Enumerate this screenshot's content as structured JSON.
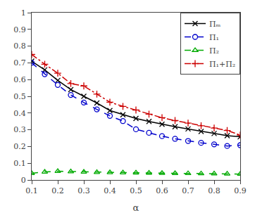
{
  "chart_data": {
    "type": "line",
    "xlabel": "α",
    "x": [
      0.1,
      0.15,
      0.2,
      0.25,
      0.3,
      0.35,
      0.4,
      0.45,
      0.5,
      0.55,
      0.6,
      0.65,
      0.7,
      0.75,
      0.8,
      0.85,
      0.9
    ],
    "series": [
      {
        "name": "Πₘ",
        "color": "#000000",
        "marker": "x",
        "line_style": "solid",
        "values": [
          0.71,
          0.658,
          0.595,
          0.54,
          0.5,
          0.46,
          0.415,
          0.39,
          0.368,
          0.35,
          0.333,
          0.318,
          0.305,
          0.29,
          0.278,
          0.265,
          0.258
        ]
      },
      {
        "name": "Π₁",
        "color": "#0000cc",
        "marker": "circle-open",
        "line_style": "dash",
        "values": [
          0.7,
          0.632,
          0.568,
          0.508,
          0.463,
          0.422,
          0.383,
          0.352,
          0.303,
          0.282,
          0.262,
          0.246,
          0.233,
          0.222,
          0.213,
          0.203,
          0.208
        ]
      },
      {
        "name": "Π₂",
        "color": "#00aa00",
        "marker": "triangle-up-open",
        "line_style": "dash",
        "values": [
          0.04,
          0.048,
          0.052,
          0.05,
          0.048,
          0.046,
          0.045,
          0.044,
          0.043,
          0.042,
          0.041,
          0.04,
          0.039,
          0.038,
          0.037,
          0.036,
          0.035
        ]
      },
      {
        "name": "Π₁+Π₂",
        "color": "#cc0000",
        "marker": "plus",
        "line_style": "dashdot",
        "values": [
          0.75,
          0.692,
          0.638,
          0.576,
          0.562,
          0.513,
          0.465,
          0.44,
          0.418,
          0.393,
          0.372,
          0.355,
          0.34,
          0.324,
          0.31,
          0.296,
          0.268
        ]
      }
    ],
    "xlim": [
      0.1,
      0.9
    ],
    "ylim": [
      0.0,
      1.0
    ],
    "xticks": [
      0.1,
      0.2,
      0.3,
      0.4,
      0.5,
      0.6,
      0.7,
      0.8,
      0.9
    ],
    "yticks": [
      0,
      0.1,
      0.2,
      0.3,
      0.4,
      0.5,
      0.6,
      0.7,
      0.8,
      0.9,
      1
    ],
    "grid": false,
    "legend": "upper right"
  }
}
